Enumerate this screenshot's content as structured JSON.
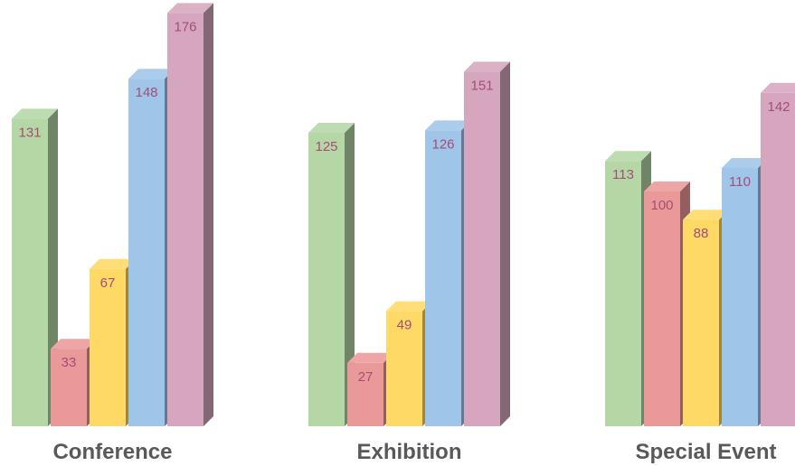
{
  "chart_data": {
    "type": "bar",
    "style": "3d-grouped",
    "categories": [
      "Conference",
      "Exhibition",
      "Special Event"
    ],
    "series": [
      {
        "values": [
          131,
          125,
          113
        ],
        "color": "#b5d7a6"
      },
      {
        "values": [
          33,
          27,
          100
        ],
        "color": "#ea9999"
      },
      {
        "values": [
          67,
          49,
          88
        ],
        "color": "#ffd966"
      },
      {
        "values": [
          148,
          126,
          110
        ],
        "color": "#9fc5e8"
      },
      {
        "values": [
          176,
          151,
          142
        ],
        "color": "#d5a6bd"
      }
    ],
    "title": "",
    "xlabel": "",
    "ylabel": "",
    "ylim": [
      0,
      176
    ],
    "grid": false,
    "legend": "none",
    "colors": {
      "value_label": "#a64d79",
      "category_label": "#595959"
    }
  }
}
